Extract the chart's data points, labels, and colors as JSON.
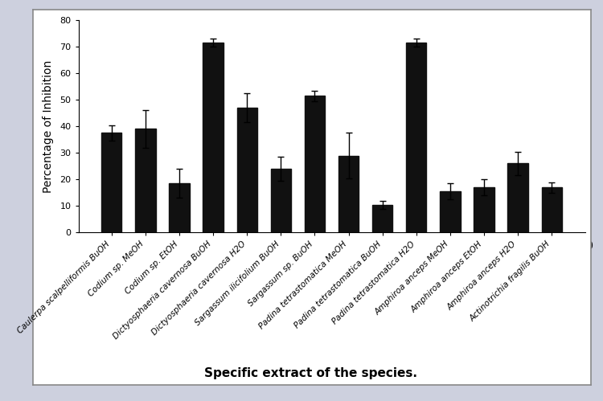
{
  "categories": [
    "Caulerpa scalpelliformis BuOH",
    "Codium sp. MeOH",
    "Codium sp. EtOH",
    "Dictyosphaeria cavernosa BuOH",
    "Dictyosphaeria cavernosa H2O",
    "Sargassum ilicifolium BuOH",
    "Sargassum sp. BuOH",
    "Padina tetrastomatica MeOH",
    "Padina tetrastomatica BuOH",
    "Padina tetrastomatica H2O",
    "Amphiroa anceps MeOH",
    "Amphiroa anceps EtOH",
    "Amphiroa anceps H2O",
    "Actinotrichia fragilis BuOH"
  ],
  "values": [
    37.5,
    39.0,
    18.5,
    71.5,
    47.0,
    24.0,
    51.5,
    29.0,
    10.5,
    71.5,
    15.5,
    17.0,
    26.0,
    17.0
  ],
  "errors": [
    3.0,
    7.0,
    5.5,
    1.5,
    5.5,
    4.5,
    2.0,
    8.5,
    1.5,
    1.5,
    3.0,
    3.0,
    4.5,
    2.0
  ],
  "bar_color": "#111111",
  "edge_color": "#111111",
  "ylabel": "Percentage of Inhibition",
  "xlabel": "Specific extract of the species.",
  "ylim": [
    0,
    80
  ],
  "yticks": [
    0,
    10,
    20,
    30,
    40,
    50,
    60,
    70,
    80
  ],
  "background_color": "#ffffff",
  "outer_background": "#cdd0de",
  "ylabel_fontsize": 10,
  "xlabel_fontsize": 11,
  "tick_fontsize": 7.5
}
